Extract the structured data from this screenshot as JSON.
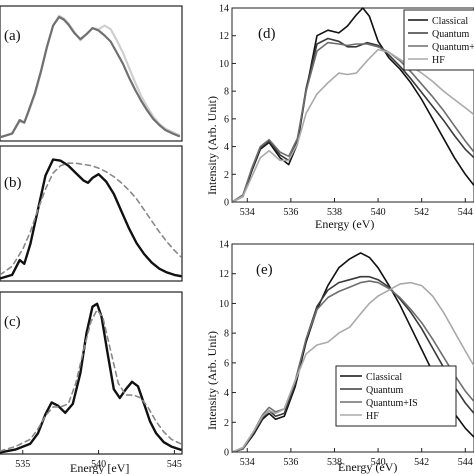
{
  "chart_data": [
    {
      "panel": "(a)",
      "type": "line",
      "xlim": [
        533.5,
        545.5
      ],
      "ylim": [
        0,
        1.1
      ],
      "series": [
        {
          "color": "#cfcfcf",
          "width": 2.2,
          "dash": "",
          "x": [
            533.5,
            534.3,
            534.8,
            535.1,
            535.4,
            535.8,
            536.2,
            536.6,
            537.0,
            537.4,
            537.7,
            538.0,
            538.4,
            538.8,
            539.2,
            539.6,
            540.0,
            540.4,
            540.8,
            541.2,
            541.6,
            542.0,
            542.4,
            542.8,
            543.2,
            543.6,
            544.0,
            544.4,
            544.9,
            545.3
          ],
          "y": [
            0.03,
            0.06,
            0.16,
            0.15,
            0.24,
            0.38,
            0.56,
            0.76,
            0.94,
            1.02,
            1.0,
            0.96,
            0.89,
            0.82,
            0.87,
            0.92,
            0.91,
            0.94,
            0.91,
            0.82,
            0.72,
            0.6,
            0.48,
            0.37,
            0.28,
            0.2,
            0.14,
            0.1,
            0.07,
            0.05
          ]
        },
        {
          "color": "#707070",
          "width": 2.2,
          "dash": "",
          "x": [
            533.5,
            534.3,
            534.8,
            535.1,
            535.4,
            535.8,
            536.2,
            536.6,
            537.0,
            537.4,
            537.7,
            538.0,
            538.4,
            538.8,
            539.2,
            539.6,
            540.0,
            540.4,
            540.8,
            541.2,
            541.6,
            542.0,
            542.4,
            542.8,
            543.2,
            543.6,
            544.0,
            544.4,
            544.9,
            545.3
          ],
          "y": [
            0.03,
            0.06,
            0.17,
            0.15,
            0.25,
            0.39,
            0.57,
            0.77,
            0.94,
            1.01,
            0.99,
            0.95,
            0.88,
            0.83,
            0.87,
            0.92,
            0.9,
            0.86,
            0.81,
            0.72,
            0.63,
            0.52,
            0.42,
            0.33,
            0.25,
            0.18,
            0.13,
            0.09,
            0.06,
            0.04
          ]
        }
      ]
    },
    {
      "panel": "(b)",
      "type": "line",
      "xlim": [
        533.5,
        545.5
      ],
      "ylim": [
        0,
        1.1
      ],
      "series": [
        {
          "color": "#111111",
          "width": 2.4,
          "dash": "",
          "x": [
            533.5,
            534.3,
            534.8,
            535.1,
            535.5,
            536.0,
            536.5,
            537.0,
            537.5,
            538.0,
            538.5,
            539.0,
            539.3,
            539.6,
            540.0,
            540.5,
            541.0,
            541.5,
            542.0,
            542.5,
            543.0,
            543.5,
            544.0,
            544.5,
            545.0,
            545.4
          ],
          "y": [
            0.02,
            0.05,
            0.17,
            0.14,
            0.3,
            0.58,
            0.86,
            0.99,
            0.98,
            0.94,
            0.88,
            0.82,
            0.8,
            0.84,
            0.87,
            0.81,
            0.71,
            0.57,
            0.43,
            0.31,
            0.22,
            0.15,
            0.1,
            0.07,
            0.05,
            0.04
          ]
        },
        {
          "color": "#888888",
          "width": 1.6,
          "dash": "5,4",
          "x": [
            533.5,
            534.3,
            535.0,
            535.5,
            536.0,
            536.5,
            537.0,
            537.5,
            538.0,
            538.5,
            539.0,
            539.5,
            540.0,
            540.5,
            541.0,
            541.5,
            542.0,
            542.5,
            543.0,
            543.5,
            544.0,
            544.5,
            545.0,
            545.4
          ],
          "y": [
            0.05,
            0.12,
            0.26,
            0.4,
            0.58,
            0.75,
            0.88,
            0.94,
            0.96,
            0.96,
            0.95,
            0.94,
            0.92,
            0.89,
            0.85,
            0.8,
            0.74,
            0.67,
            0.58,
            0.49,
            0.4,
            0.32,
            0.25,
            0.2
          ]
        }
      ]
    },
    {
      "panel": "(c)",
      "type": "line",
      "xlim": [
        533.5,
        545.5
      ],
      "ylim": [
        0,
        1.1
      ],
      "xticks": [
        535,
        540,
        545
      ],
      "xlabel": "Energy [eV]",
      "series": [
        {
          "color": "#111111",
          "width": 2.4,
          "dash": "",
          "x": [
            533.5,
            534.5,
            535.5,
            536.0,
            536.5,
            536.9,
            537.3,
            537.8,
            538.3,
            538.8,
            539.2,
            539.6,
            539.9,
            540.2,
            540.6,
            541.0,
            541.4,
            541.8,
            542.2,
            542.6,
            543.0,
            543.4,
            543.8,
            544.3,
            544.8,
            545.4
          ],
          "y": [
            0.01,
            0.03,
            0.07,
            0.14,
            0.27,
            0.35,
            0.33,
            0.28,
            0.34,
            0.55,
            0.82,
            1.0,
            1.02,
            0.93,
            0.68,
            0.44,
            0.38,
            0.44,
            0.49,
            0.46,
            0.34,
            0.22,
            0.14,
            0.08,
            0.05,
            0.03
          ]
        },
        {
          "color": "#888888",
          "width": 1.6,
          "dash": "5,4",
          "x": [
            533.5,
            534.5,
            535.5,
            536.0,
            536.5,
            537.0,
            537.5,
            538.0,
            538.5,
            539.0,
            539.5,
            539.9,
            540.3,
            540.8,
            541.3,
            541.8,
            542.3,
            542.8,
            543.3,
            543.8,
            544.3,
            544.8,
            545.4
          ],
          "y": [
            0.02,
            0.05,
            0.1,
            0.17,
            0.26,
            0.32,
            0.32,
            0.34,
            0.48,
            0.7,
            0.9,
            0.98,
            0.92,
            0.7,
            0.48,
            0.4,
            0.4,
            0.38,
            0.31,
            0.22,
            0.15,
            0.1,
            0.07
          ]
        }
      ]
    },
    {
      "panel": "(d)",
      "type": "line",
      "xlim": [
        533.3,
        544.4
      ],
      "ylim": [
        0,
        14
      ],
      "xticks": [
        534,
        536,
        538,
        540,
        542,
        544
      ],
      "yticks": [
        0,
        2,
        4,
        6,
        8,
        10,
        12,
        14
      ],
      "xlabel": "Energy (eV)",
      "ylabel": "Intensity (Arb. Unit)",
      "legend": [
        "Classical",
        "Quantum",
        "Quantum+IS",
        "HF"
      ],
      "series": [
        {
          "color": "#111111",
          "width": 1.6,
          "dash": "",
          "x": [
            533.3,
            533.8,
            534.2,
            534.6,
            535.0,
            535.5,
            535.9,
            536.3,
            536.7,
            537.2,
            537.7,
            538.2,
            538.6,
            539.0,
            539.3,
            539.6,
            540.0,
            540.5,
            541.0,
            541.5,
            542.0,
            542.5,
            543.0,
            543.5,
            544.0,
            544.4
          ],
          "y": [
            0.0,
            0.4,
            2.2,
            3.8,
            4.3,
            3.2,
            2.7,
            4.2,
            8.0,
            12.0,
            12.4,
            12.2,
            12.7,
            13.5,
            14.0,
            13.4,
            11.6,
            10.4,
            9.6,
            8.6,
            7.4,
            6.0,
            4.6,
            3.2,
            2.0,
            1.2
          ]
        },
        {
          "color": "#3a3a3a",
          "width": 1.6,
          "dash": "",
          "x": [
            533.3,
            533.8,
            534.2,
            534.6,
            535.0,
            535.5,
            535.9,
            536.3,
            536.7,
            537.2,
            537.7,
            538.2,
            538.6,
            539.0,
            539.5,
            540.0,
            540.5,
            541.0,
            541.5,
            542.0,
            542.5,
            543.0,
            543.5,
            544.0,
            544.4
          ],
          "y": [
            0.0,
            0.5,
            2.3,
            3.9,
            4.4,
            3.4,
            3.0,
            4.4,
            8.2,
            11.4,
            11.8,
            11.6,
            11.2,
            11.2,
            11.5,
            11.3,
            10.6,
            9.8,
            8.9,
            7.9,
            6.9,
            5.9,
            4.8,
            3.8,
            3.2
          ]
        },
        {
          "color": "#6e6e6e",
          "width": 1.6,
          "dash": "",
          "x": [
            533.3,
            533.8,
            534.2,
            534.6,
            535.0,
            535.5,
            535.9,
            536.3,
            536.7,
            537.2,
            537.7,
            538.2,
            538.6,
            539.0,
            539.5,
            540.0,
            540.5,
            541.0,
            541.5,
            542.0,
            542.5,
            543.0,
            543.5,
            544.0,
            544.4
          ],
          "y": [
            0.0,
            0.5,
            2.4,
            4.0,
            4.5,
            3.6,
            3.3,
            4.6,
            8.0,
            10.9,
            11.5,
            11.4,
            11.3,
            11.4,
            11.4,
            11.2,
            10.8,
            10.2,
            9.4,
            8.5,
            7.6,
            6.6,
            5.5,
            4.4,
            3.6
          ]
        },
        {
          "color": "#aaaaaa",
          "width": 1.6,
          "dash": "",
          "x": [
            533.3,
            533.8,
            534.2,
            534.6,
            535.0,
            535.5,
            535.9,
            536.3,
            536.7,
            537.2,
            537.7,
            538.2,
            538.6,
            539.0,
            539.5,
            540.0,
            540.5,
            541.0,
            541.5,
            542.0,
            542.5,
            543.0,
            543.5,
            544.0,
            544.4
          ],
          "y": [
            0.0,
            0.4,
            1.8,
            3.2,
            3.7,
            3.0,
            3.0,
            4.2,
            6.4,
            7.8,
            8.6,
            9.3,
            9.2,
            9.3,
            10.2,
            11.0,
            10.8,
            10.3,
            9.8,
            9.3,
            8.7,
            8.0,
            7.4,
            6.8,
            6.3
          ]
        }
      ]
    },
    {
      "panel": "(e)",
      "type": "line",
      "xlim": [
        533.3,
        544.4
      ],
      "ylim": [
        0,
        14
      ],
      "xticks": [
        534,
        536,
        538,
        540,
        542,
        544
      ],
      "yticks": [
        0,
        2,
        4,
        6,
        8,
        10,
        12,
        14
      ],
      "xlabel": "Energy (eV)",
      "ylabel": "Intensity (Arb. Unit)",
      "legend": [
        "Classical",
        "Quantum",
        "Quantum+IS",
        "HF"
      ],
      "series": [
        {
          "color": "#111111",
          "width": 1.6,
          "dash": "",
          "x": [
            533.3,
            533.8,
            534.3,
            534.7,
            535.0,
            535.3,
            535.7,
            536.2,
            536.7,
            537.2,
            537.7,
            538.2,
            538.7,
            539.2,
            539.6,
            540.0,
            540.5,
            541.0,
            541.5,
            542.0,
            542.5,
            543.0,
            543.5,
            544.0,
            544.4
          ],
          "y": [
            0.0,
            0.2,
            1.2,
            2.2,
            2.6,
            2.2,
            2.4,
            4.4,
            7.4,
            9.6,
            11.2,
            12.4,
            13.0,
            13.4,
            13.1,
            12.4,
            11.2,
            9.9,
            8.4,
            6.9,
            5.4,
            3.9,
            2.6,
            1.6,
            1.0
          ]
        },
        {
          "color": "#3a3a3a",
          "width": 1.6,
          "dash": "",
          "x": [
            533.3,
            533.8,
            534.3,
            534.7,
            535.0,
            535.3,
            535.7,
            536.2,
            536.7,
            537.2,
            537.7,
            538.2,
            538.7,
            539.2,
            539.6,
            540.0,
            540.5,
            541.0,
            541.5,
            542.0,
            542.5,
            543.0,
            543.5,
            544.0,
            544.4
          ],
          "y": [
            0.0,
            0.2,
            1.3,
            2.3,
            2.8,
            2.4,
            2.6,
            4.6,
            7.6,
            9.8,
            10.9,
            11.4,
            11.6,
            11.8,
            11.8,
            11.6,
            11.1,
            10.3,
            9.4,
            8.3,
            7.0,
            5.7,
            4.4,
            3.3,
            2.6
          ]
        },
        {
          "color": "#6e6e6e",
          "width": 1.6,
          "dash": "",
          "x": [
            533.3,
            533.8,
            534.3,
            534.7,
            535.0,
            535.3,
            535.7,
            536.2,
            536.7,
            537.2,
            537.7,
            538.2,
            538.7,
            539.2,
            539.6,
            540.0,
            540.5,
            541.0,
            541.5,
            542.0,
            542.5,
            543.0,
            543.5,
            544.0,
            544.4
          ],
          "y": [
            0.0,
            0.2,
            1.4,
            2.5,
            3.0,
            2.7,
            2.9,
            4.8,
            7.6,
            9.6,
            10.4,
            10.8,
            11.1,
            11.4,
            11.5,
            11.4,
            11.0,
            10.4,
            9.6,
            8.7,
            7.6,
            6.4,
            5.2,
            4.1,
            3.4
          ]
        },
        {
          "color": "#aaaaaa",
          "width": 1.6,
          "dash": "",
          "x": [
            533.3,
            533.8,
            534.3,
            534.7,
            535.0,
            535.3,
            535.7,
            536.2,
            536.7,
            537.2,
            537.7,
            538.2,
            538.7,
            539.2,
            539.6,
            540.0,
            540.5,
            541.0,
            541.5,
            542.0,
            542.5,
            543.0,
            543.5,
            544.0,
            544.4
          ],
          "y": [
            0.0,
            0.3,
            1.4,
            2.4,
            2.8,
            2.6,
            2.9,
            4.8,
            6.6,
            7.2,
            7.4,
            8.0,
            8.4,
            9.3,
            10.0,
            10.5,
            10.9,
            11.3,
            11.4,
            11.2,
            10.5,
            9.4,
            8.1,
            6.8,
            5.8
          ]
        }
      ]
    }
  ]
}
